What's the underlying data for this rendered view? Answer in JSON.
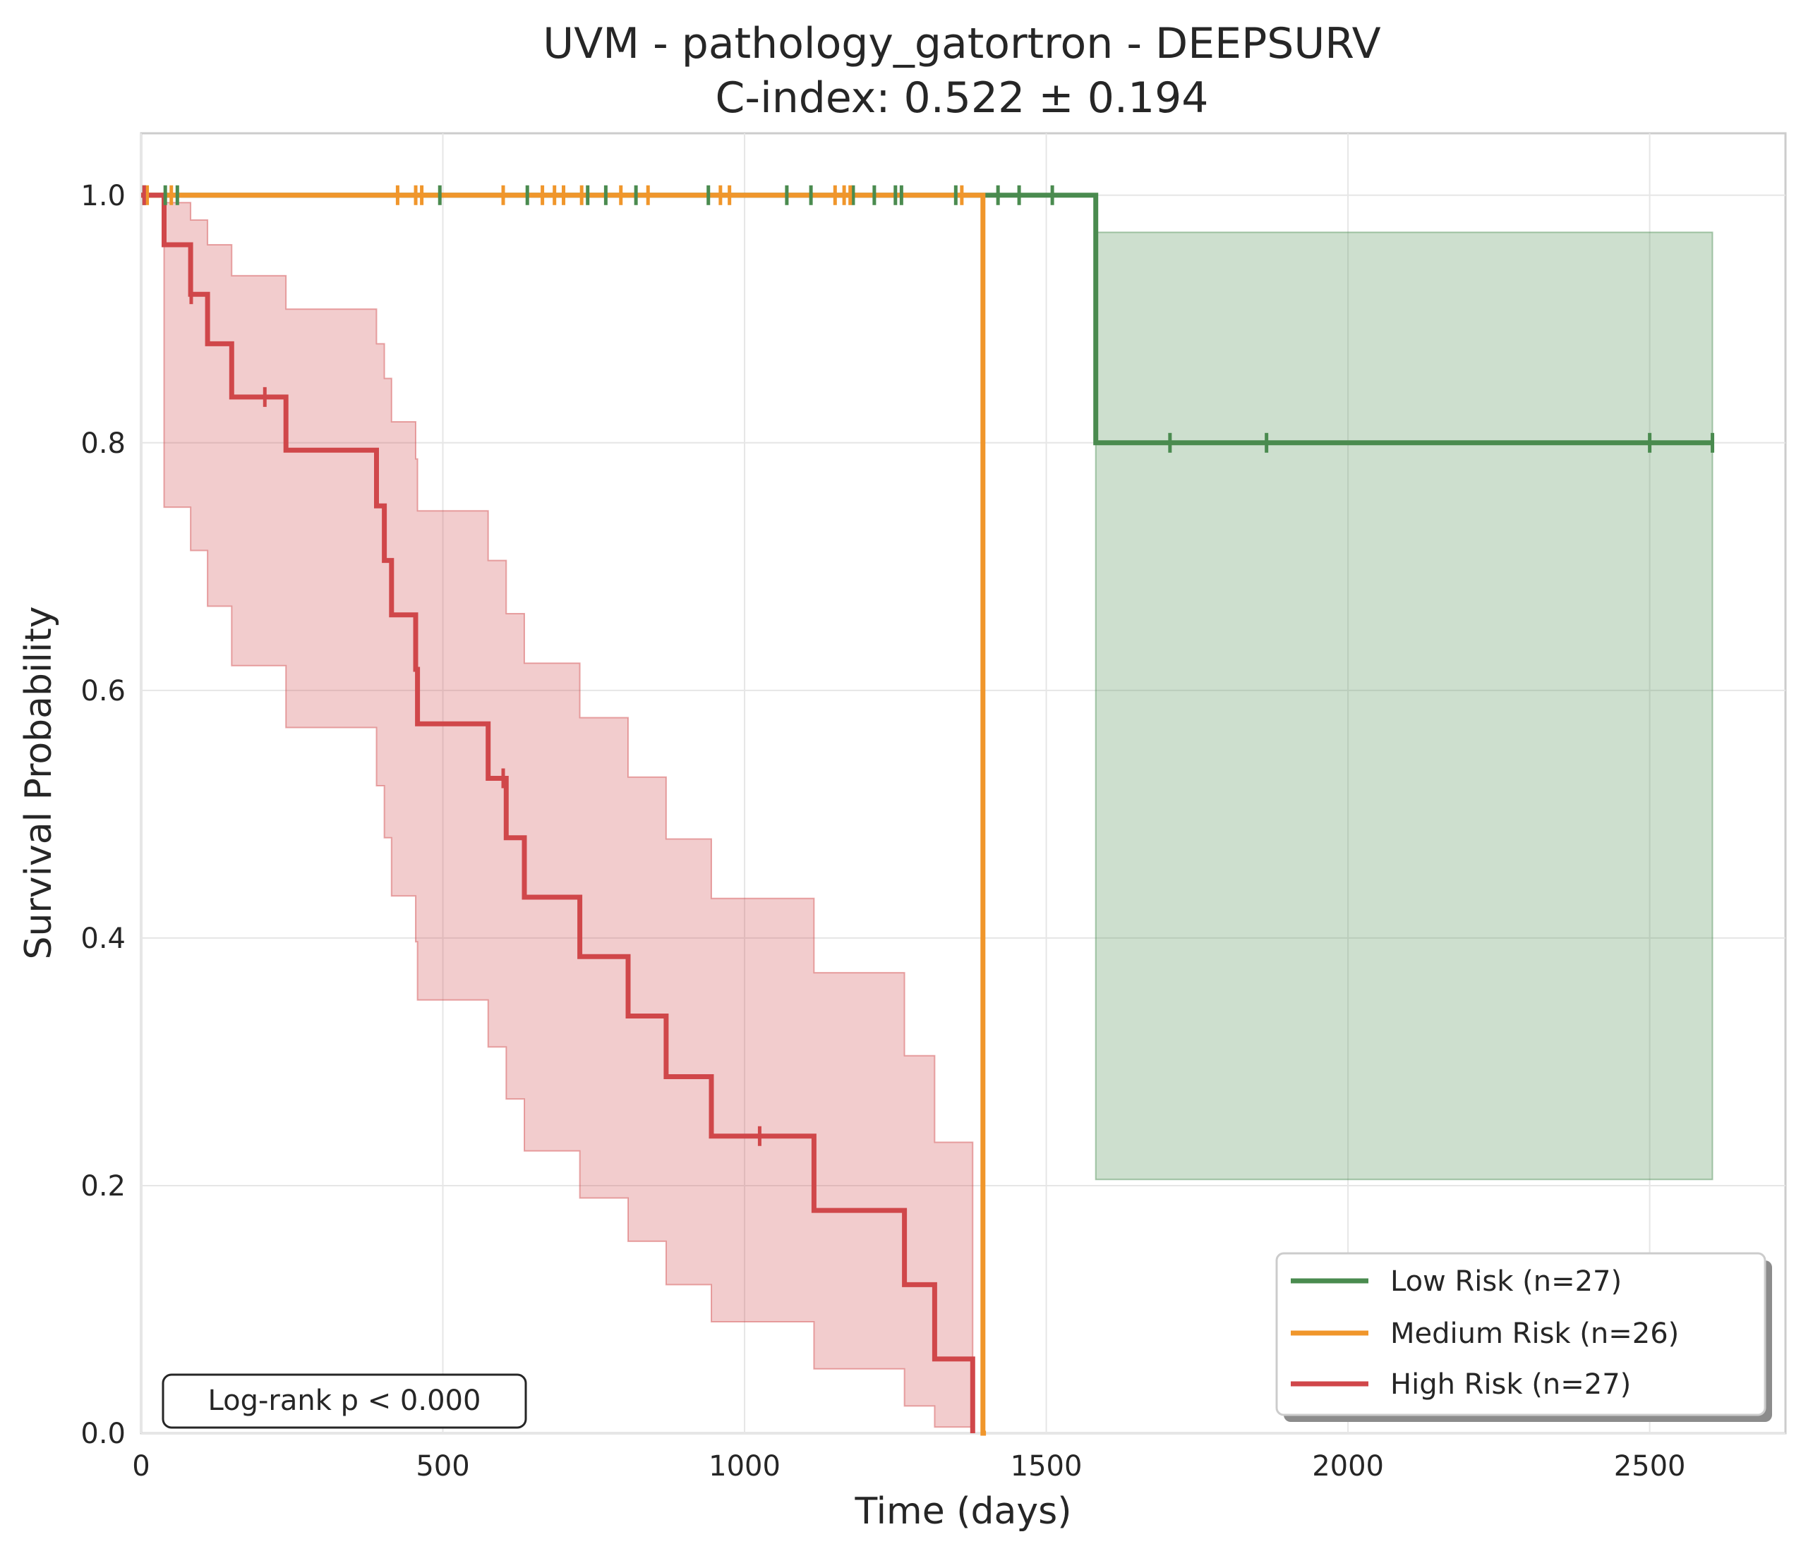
{
  "chart_data": {
    "type": "line",
    "subtype": "kaplan-meier",
    "title": "UVM - pathology_gatortron - DEEPSURV",
    "subtitle": "C-index: 0.522 ± 0.194",
    "xlabel": "Time (days)",
    "ylabel": "Survival Probability",
    "xlim": [
      0,
      2725
    ],
    "ylim": [
      0,
      1.05
    ],
    "xticks": [
      0,
      500,
      1000,
      1500,
      2000,
      2500
    ],
    "yticks": [
      0.0,
      0.2,
      0.4,
      0.6,
      0.8,
      1.0
    ],
    "xtick_labels": [
      "0",
      "500",
      "1000",
      "1500",
      "2000",
      "2500"
    ],
    "ytick_labels": [
      "0.0",
      "0.2",
      "0.4",
      "0.6",
      "0.8",
      "1.0"
    ],
    "grid": true,
    "legend_position": "lower-right",
    "annotation": "Log-rank p < 0.000",
    "series": [
      {
        "name": "Low Risk (n=27)",
        "color": "#4a8b4f",
        "steps": [
          [
            0,
            1.0
          ],
          [
            1582,
            0.8
          ],
          [
            2604,
            0.8
          ]
        ],
        "ci": [
          [
            0,
            1.0,
            1.0
          ],
          [
            1582,
            0.205,
            0.97
          ],
          [
            2604,
            0.205,
            0.97
          ]
        ],
        "censored": [
          [
            5,
            1.0
          ],
          [
            40,
            1.0
          ],
          [
            60,
            1.0
          ],
          [
            495,
            1.0
          ],
          [
            640,
            1.0
          ],
          [
            740,
            1.0
          ],
          [
            770,
            1.0
          ],
          [
            820,
            1.0
          ],
          [
            940,
            1.0
          ],
          [
            1070,
            1.0
          ],
          [
            1110,
            1.0
          ],
          [
            1180,
            1.0
          ],
          [
            1215,
            1.0
          ],
          [
            1250,
            1.0
          ],
          [
            1260,
            1.0
          ],
          [
            1350,
            1.0
          ],
          [
            1420,
            1.0
          ],
          [
            1455,
            1.0
          ],
          [
            1510,
            1.0
          ],
          [
            1705,
            0.8
          ],
          [
            1865,
            0.8
          ],
          [
            2500,
            0.8
          ],
          [
            2604,
            0.8
          ]
        ]
      },
      {
        "name": "Medium Risk (n=26)",
        "color": "#f0962b",
        "steps": [
          [
            0,
            1.0
          ],
          [
            1395,
            0.0
          ],
          [
            1400,
            0.0
          ]
        ],
        "ci": [],
        "censored": [
          [
            10,
            1.0
          ],
          [
            50,
            1.0
          ],
          [
            425,
            1.0
          ],
          [
            455,
            1.0
          ],
          [
            465,
            1.0
          ],
          [
            600,
            1.0
          ],
          [
            665,
            1.0
          ],
          [
            685,
            1.0
          ],
          [
            700,
            1.0
          ],
          [
            730,
            1.0
          ],
          [
            795,
            1.0
          ],
          [
            840,
            1.0
          ],
          [
            960,
            1.0
          ],
          [
            975,
            1.0
          ],
          [
            1150,
            1.0
          ],
          [
            1165,
            1.0
          ],
          [
            1175,
            1.0
          ],
          [
            1360,
            1.0
          ]
        ]
      },
      {
        "name": "High Risk (n=27)",
        "color": "#d0474a",
        "steps": [
          [
            0,
            1.0
          ],
          [
            38,
            0.96
          ],
          [
            82,
            0.92
          ],
          [
            110,
            0.88
          ],
          [
            150,
            0.837
          ],
          [
            240,
            0.794
          ],
          [
            390,
            0.749
          ],
          [
            403,
            0.705
          ],
          [
            415,
            0.661
          ],
          [
            455,
            0.617
          ],
          [
            458,
            0.573
          ],
          [
            575,
            0.529
          ],
          [
            605,
            0.481
          ],
          [
            635,
            0.433
          ],
          [
            727,
            0.385
          ],
          [
            807,
            0.337
          ],
          [
            870,
            0.288
          ],
          [
            945,
            0.24
          ],
          [
            1115,
            0.18
          ],
          [
            1265,
            0.12
          ],
          [
            1315,
            0.06
          ],
          [
            1378,
            0.0
          ]
        ],
        "ci": [
          [
            0,
            1.0,
            1.0
          ],
          [
            38,
            0.748,
            0.994
          ],
          [
            82,
            0.713,
            0.98
          ],
          [
            110,
            0.668,
            0.96
          ],
          [
            150,
            0.62,
            0.935
          ],
          [
            240,
            0.57,
            0.908
          ],
          [
            390,
            0.523,
            0.88
          ],
          [
            403,
            0.481,
            0.852
          ],
          [
            415,
            0.434,
            0.817
          ],
          [
            455,
            0.397,
            0.787
          ],
          [
            458,
            0.35,
            0.745
          ],
          [
            575,
            0.312,
            0.705
          ],
          [
            605,
            0.27,
            0.662
          ],
          [
            635,
            0.228,
            0.622
          ],
          [
            727,
            0.19,
            0.578
          ],
          [
            807,
            0.155,
            0.53
          ],
          [
            870,
            0.12,
            0.48
          ],
          [
            945,
            0.09,
            0.432
          ],
          [
            1115,
            0.052,
            0.372
          ],
          [
            1265,
            0.022,
            0.305
          ],
          [
            1315,
            0.005,
            0.235
          ],
          [
            1378,
            0.0,
            0.0
          ]
        ],
        "censored": [
          [
            5,
            1.0
          ],
          [
            83,
            0.92
          ],
          [
            205,
            0.837
          ],
          [
            600,
            0.529
          ],
          [
            1025,
            0.24
          ]
        ]
      }
    ]
  }
}
